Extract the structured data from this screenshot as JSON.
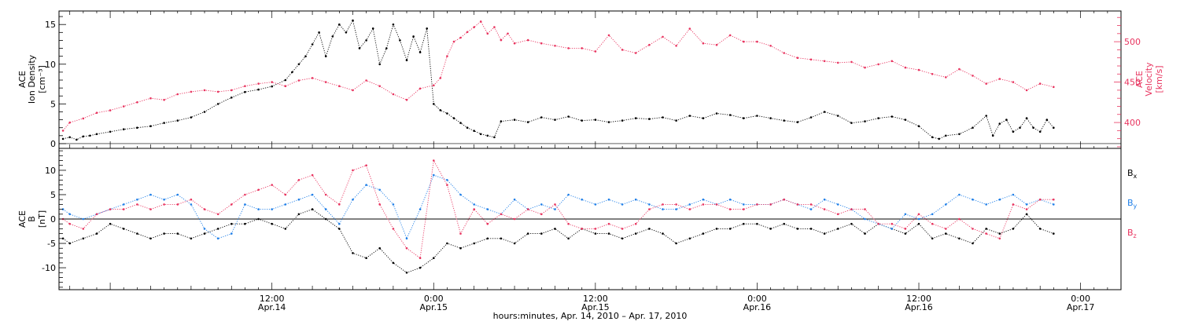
{
  "colors": {
    "black": "#000000",
    "red": "#e8345f",
    "blue": "#1f7fe8"
  },
  "xaxis": {
    "title": "hours:minutes, Apr. 14, 2010 – Apr. 17, 2010",
    "range_hours": [
      -3.8,
      75.0
    ],
    "ticks": [
      {
        "h": 12,
        "time": "12:00",
        "date": "Apr.14"
      },
      {
        "h": 24,
        "time": "0:00",
        "date": "Apr.15"
      },
      {
        "h": 36,
        "time": "12:00",
        "date": "Apr.15"
      },
      {
        "h": 48,
        "time": "0:00",
        "date": "Apr.16"
      },
      {
        "h": 60,
        "time": "12:00",
        "date": "Apr.16"
      },
      {
        "h": 72,
        "time": "0:00",
        "date": "Apr.17"
      }
    ]
  },
  "chart_data": [
    {
      "type": "scatter",
      "panel": "top",
      "ylabel_left": [
        "ACE",
        "Ion Density",
        "[cm⁻³]"
      ],
      "ylabel_right": [
        "ACE",
        "Velocity",
        "[km/s]"
      ],
      "ylim_left": [
        -0.6,
        16.7
      ],
      "ylim_right": [
        368,
        538
      ],
      "yticks_left": [
        0,
        5,
        10,
        15
      ],
      "yticks_right": [
        400,
        450,
        500
      ],
      "grid": false,
      "series": [
        {
          "name": "",
          "axis": "left",
          "color": "black",
          "x_hours": [
            -3.5,
            -3,
            -2.5,
            -2,
            -1.5,
            -1,
            0,
            1,
            2,
            3,
            4,
            5,
            6,
            7,
            8,
            9,
            10,
            11,
            12,
            13,
            13.5,
            14,
            14.5,
            15,
            15.5,
            16,
            16.5,
            17,
            17.5,
            18,
            18.5,
            19,
            19.5,
            20,
            20.5,
            21,
            21.5,
            22,
            22.5,
            23,
            23.5,
            24,
            24.5,
            25,
            25.5,
            26,
            26.5,
            27,
            27.5,
            28,
            28.5,
            29,
            30,
            31,
            32,
            33,
            34,
            35,
            36,
            37,
            38,
            39,
            40,
            41,
            42,
            43,
            44,
            45,
            46,
            47,
            48,
            49,
            50,
            51,
            52,
            53,
            54,
            55,
            56,
            57,
            58,
            59,
            60,
            61,
            61.5,
            62,
            63,
            64,
            65,
            65.5,
            66,
            66.5,
            67,
            67.5,
            68,
            68.5,
            69,
            69.5,
            70
          ],
          "y": [
            0.6,
            0.8,
            0.5,
            0.9,
            1.0,
            1.2,
            1.5,
            1.8,
            2.0,
            2.2,
            2.6,
            2.9,
            3.3,
            4.0,
            5.0,
            5.8,
            6.5,
            6.8,
            7.2,
            8.0,
            9.0,
            10.0,
            11.0,
            12.5,
            14.0,
            11.0,
            13.5,
            15.0,
            14.0,
            15.5,
            12.0,
            13.0,
            14.5,
            10.0,
            12.0,
            15.0,
            13.0,
            10.5,
            13.5,
            11.5,
            14.5,
            5.0,
            4.2,
            3.8,
            3.2,
            2.6,
            2.0,
            1.6,
            1.2,
            1.0,
            0.8,
            2.8,
            3.0,
            2.7,
            3.3,
            3.0,
            3.4,
            2.9,
            3.0,
            2.7,
            2.9,
            3.2,
            3.1,
            3.3,
            2.9,
            3.5,
            3.2,
            3.8,
            3.6,
            3.2,
            3.5,
            3.2,
            2.9,
            2.7,
            3.3,
            4.0,
            3.5,
            2.6,
            2.8,
            3.2,
            3.4,
            3.0,
            2.2,
            0.8,
            0.6,
            1.0,
            1.2,
            2.0,
            3.5,
            1.0,
            2.5,
            3.0,
            1.5,
            2.0,
            3.2,
            2.0,
            1.5,
            3.0,
            2.0
          ]
        },
        {
          "name": "",
          "axis": "right",
          "color": "red",
          "x_hours": [
            -3.5,
            -3,
            -2,
            -1,
            0,
            1,
            2,
            3,
            4,
            5,
            6,
            7,
            8,
            9,
            10,
            11,
            12,
            13,
            14,
            15,
            16,
            17,
            18,
            19,
            20,
            21,
            22,
            23,
            24,
            24.5,
            25,
            25.5,
            26,
            26.5,
            27,
            27.5,
            28,
            28.5,
            29,
            29.5,
            30,
            31,
            32,
            33,
            34,
            35,
            36,
            37,
            38,
            39,
            40,
            41,
            42,
            43,
            44,
            45,
            46,
            47,
            48,
            49,
            50,
            51,
            52,
            53,
            54,
            55,
            56,
            57,
            58,
            59,
            60,
            61,
            62,
            63,
            64,
            65,
            66,
            67,
            68,
            69,
            70
          ],
          "y": [
            390,
            400,
            405,
            412,
            415,
            420,
            425,
            430,
            428,
            435,
            438,
            440,
            438,
            440,
            445,
            448,
            450,
            445,
            452,
            455,
            450,
            445,
            440,
            452,
            445,
            435,
            428,
            442,
            446,
            455,
            482,
            500,
            505,
            512,
            518,
            525,
            510,
            518,
            502,
            510,
            498,
            502,
            498,
            495,
            492,
            492,
            488,
            508,
            490,
            486,
            496,
            506,
            495,
            516,
            498,
            496,
            508,
            500,
            500,
            495,
            486,
            480,
            478,
            476,
            474,
            475,
            468,
            472,
            476,
            468,
            465,
            460,
            456,
            466,
            458,
            448,
            454,
            450,
            440,
            448,
            444
          ]
        }
      ]
    },
    {
      "type": "scatter",
      "panel": "bottom",
      "ylabel_left": [
        "ACE",
        "B",
        "[nT]"
      ],
      "ylim": [
        -14.5,
        14.5
      ],
      "yticks": [
        -10,
        -5,
        0,
        5,
        10
      ],
      "grid": false,
      "legend": "right",
      "series": [
        {
          "name": "Bx",
          "color": "black",
          "x_hours": [
            -3.5,
            -3,
            -2,
            -1,
            0,
            1,
            2,
            3,
            4,
            5,
            6,
            7,
            8,
            9,
            10,
            11,
            12,
            13,
            14,
            15,
            16,
            17,
            18,
            19,
            20,
            21,
            22,
            23,
            24,
            25,
            26,
            27,
            28,
            29,
            30,
            31,
            32,
            33,
            34,
            35,
            36,
            37,
            38,
            39,
            40,
            41,
            42,
            43,
            44,
            45,
            46,
            47,
            48,
            49,
            50,
            51,
            52,
            53,
            54,
            55,
            56,
            57,
            58,
            59,
            60,
            61,
            62,
            63,
            64,
            65,
            66,
            67,
            68,
            69,
            70
          ],
          "y": [
            -4,
            -5,
            -4,
            -3,
            -1,
            -2,
            -3,
            -4,
            -3,
            -3,
            -4,
            -3,
            -2,
            -1,
            -1,
            0,
            -1,
            -2,
            1,
            2,
            0,
            -2,
            -7,
            -8,
            -6,
            -9,
            -11,
            -10,
            -8,
            -5,
            -6,
            -5,
            -4,
            -4,
            -5,
            -3,
            -3,
            -2,
            -4,
            -2,
            -3,
            -3,
            -4,
            -3,
            -2,
            -3,
            -5,
            -4,
            -3,
            -2,
            -2,
            -1,
            -1,
            -2,
            -1,
            -2,
            -2,
            -3,
            -2,
            -1,
            -3,
            -1,
            -2,
            -3,
            -1,
            -4,
            -3,
            -4,
            -5,
            -2,
            -3,
            -2,
            1,
            -2,
            -3
          ]
        },
        {
          "name": "By",
          "color": "blue",
          "x_hours": [
            -3.5,
            -3,
            -2,
            -1,
            0,
            1,
            2,
            3,
            4,
            5,
            6,
            7,
            8,
            9,
            10,
            11,
            12,
            13,
            14,
            15,
            16,
            17,
            18,
            19,
            20,
            21,
            22,
            23,
            24,
            25,
            26,
            27,
            28,
            29,
            30,
            31,
            32,
            33,
            34,
            35,
            36,
            37,
            38,
            39,
            40,
            41,
            42,
            43,
            44,
            45,
            46,
            47,
            48,
            49,
            50,
            51,
            52,
            53,
            54,
            55,
            56,
            57,
            58,
            59,
            60,
            61,
            62,
            63,
            64,
            65,
            66,
            67,
            68,
            69,
            70
          ],
          "y": [
            2,
            1,
            0,
            1,
            2,
            3,
            4,
            5,
            4,
            5,
            3,
            -2,
            -4,
            -3,
            3,
            2,
            2,
            3,
            4,
            5,
            2,
            -1,
            4,
            7,
            6,
            3,
            -4,
            2,
            9,
            8,
            5,
            3,
            2,
            1,
            4,
            2,
            3,
            2,
            5,
            4,
            3,
            4,
            3,
            4,
            3,
            2,
            2,
            3,
            4,
            3,
            4,
            3,
            3,
            3,
            4,
            3,
            2,
            4,
            3,
            2,
            0,
            -1,
            -2,
            1,
            0,
            1,
            3,
            5,
            4,
            3,
            4,
            5,
            3,
            4,
            3
          ]
        },
        {
          "name": "Bz",
          "color": "red",
          "x_hours": [
            -3.5,
            -3,
            -2,
            -1,
            0,
            1,
            2,
            3,
            4,
            5,
            6,
            7,
            8,
            9,
            10,
            11,
            12,
            13,
            14,
            15,
            16,
            17,
            18,
            19,
            20,
            21,
            22,
            23,
            24,
            25,
            26,
            27,
            28,
            29,
            30,
            31,
            32,
            33,
            34,
            35,
            36,
            37,
            38,
            39,
            40,
            41,
            42,
            43,
            44,
            45,
            46,
            47,
            48,
            49,
            50,
            51,
            52,
            53,
            54,
            55,
            56,
            57,
            58,
            59,
            60,
            61,
            62,
            63,
            64,
            65,
            66,
            67,
            68,
            69,
            70
          ],
          "y": [
            0,
            -1,
            -2,
            1,
            2,
            2,
            3,
            2,
            3,
            3,
            4,
            2,
            1,
            3,
            5,
            6,
            7,
            5,
            8,
            9,
            5,
            3,
            10,
            11,
            3,
            -2,
            -6,
            -8,
            12,
            7,
            -3,
            2,
            -1,
            1,
            0,
            2,
            1,
            3,
            -1,
            -2,
            -2,
            -1,
            -2,
            -1,
            2,
            3,
            3,
            2,
            3,
            3,
            2,
            2,
            3,
            3,
            4,
            3,
            3,
            2,
            1,
            2,
            2,
            -1,
            -1,
            -2,
            1,
            -1,
            -2,
            0,
            -2,
            -3,
            -4,
            3,
            2,
            4,
            4
          ]
        }
      ]
    }
  ]
}
